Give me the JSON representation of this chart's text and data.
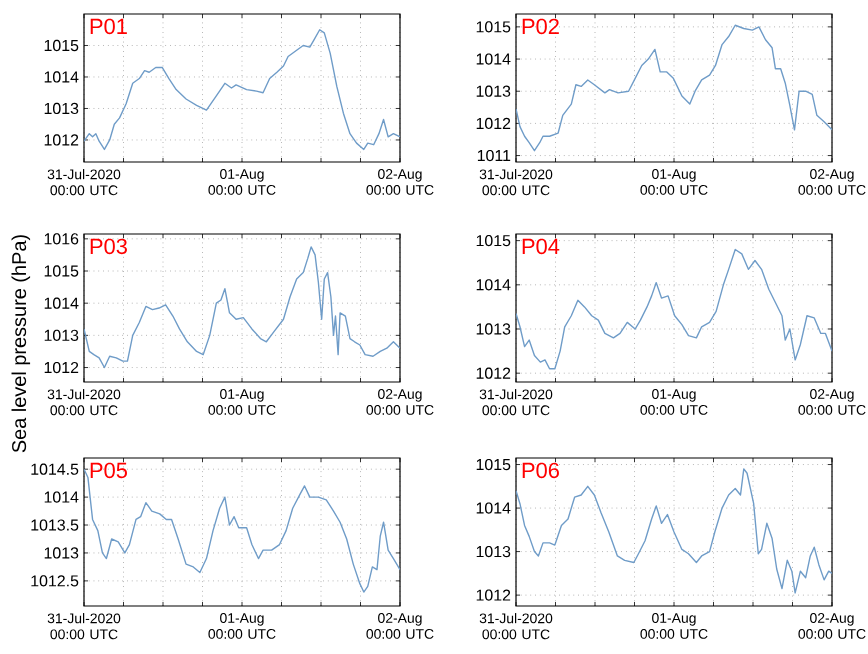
{
  "chart_data": [
    {
      "type": "line",
      "title": "P01",
      "xlim": [
        "2020-07-31T00:00",
        "2020-08-02T00:00"
      ],
      "ylim": [
        1011.3,
        1016
      ],
      "yticks": [
        1012,
        1013,
        1014,
        1015
      ],
      "grid": true,
      "xticks": [
        {
          "value": "2020-07-31T00:00",
          "label": "31-Jul-2020 00:00 UTC"
        },
        {
          "value": "2020-07-31T06:00",
          "label": null
        },
        {
          "value": "2020-07-31T12:00",
          "label": null
        },
        {
          "value": "2020-07-31T18:00",
          "label": null
        },
        {
          "value": "2020-08-01T00:00",
          "label": "01-Aug 00:00 UTC"
        },
        {
          "value": "2020-08-01T06:00",
          "label": null
        },
        {
          "value": "2020-08-01T12:00",
          "label": null
        },
        {
          "value": "2020-08-01T18:00",
          "label": null
        },
        {
          "value": "2020-08-02T00:00",
          "label": "02-Aug 00:00 UTC"
        }
      ],
      "x": [
        "2020-07-31T00:00",
        "2020-07-31T00:48",
        "2020-07-31T01:18",
        "2020-07-31T01:48",
        "2020-07-31T02:18",
        "2020-07-31T03:06",
        "2020-07-31T03:54",
        "2020-07-31T04:36",
        "2020-07-31T05:24",
        "2020-07-31T06:24",
        "2020-07-31T07:24",
        "2020-07-31T08:24",
        "2020-07-31T09:12",
        "2020-07-31T09:54",
        "2020-07-31T10:54",
        "2020-07-31T11:54",
        "2020-07-31T12:54",
        "2020-07-31T14:00",
        "2020-07-31T15:30",
        "2020-07-31T17:06",
        "2020-07-31T18:36",
        "2020-07-31T20:06",
        "2020-07-31T21:24",
        "2020-07-31T22:24",
        "2020-07-31T23:06",
        "2020-08-01T00:42",
        "2020-08-01T02:12",
        "2020-08-01T03:12",
        "2020-08-01T04:12",
        "2020-08-01T05:18",
        "2020-08-01T06:18",
        "2020-08-01T07:00",
        "2020-08-01T08:18",
        "2020-08-01T09:18",
        "2020-08-01T10:18",
        "2020-08-01T11:00",
        "2020-08-01T11:48",
        "2020-08-01T12:30",
        "2020-08-01T13:24",
        "2020-08-01T14:24",
        "2020-08-01T15:24",
        "2020-08-01T16:24",
        "2020-08-01T17:24",
        "2020-08-01T18:30",
        "2020-08-01T19:06",
        "2020-08-01T20:00",
        "2020-08-01T20:48",
        "2020-08-01T21:30",
        "2020-08-01T22:12",
        "2020-08-01T23:00",
        "2020-08-02T00:00"
      ],
      "series": [
        {
          "color": "#6f9cc8",
          "values": [
            1011.96,
            1012.2,
            1012.1,
            1012.2,
            1011.96,
            1011.7,
            1012.0,
            1012.5,
            1012.7,
            1013.15,
            1013.8,
            1013.95,
            1014.2,
            1014.15,
            1014.3,
            1014.3,
            1013.95,
            1013.6,
            1013.3,
            1013.1,
            1012.95,
            1013.4,
            1013.8,
            1013.65,
            1013.75,
            1013.6,
            1013.55,
            1013.5,
            1013.95,
            1014.15,
            1014.35,
            1014.65,
            1014.85,
            1015.0,
            1014.95,
            1015.2,
            1015.5,
            1015.4,
            1014.75,
            1013.7,
            1012.85,
            1012.2,
            1011.9,
            1011.7,
            1011.9,
            1011.85,
            1012.2,
            1012.65,
            1012.1,
            1012.2,
            1012.1
          ]
        }
      ]
    },
    {
      "type": "line",
      "title": "P02",
      "xlim": [
        "2020-07-31T00:00",
        "2020-08-02T00:00"
      ],
      "ylim": [
        1010.8,
        1015.4
      ],
      "yticks": [
        1011,
        1012,
        1013,
        1014,
        1015
      ],
      "grid": true,
      "xticks": [
        {
          "value": "2020-07-31T00:00",
          "label": "31-Jul-2020 00:00 UTC"
        },
        {
          "value": "2020-07-31T06:00",
          "label": null
        },
        {
          "value": "2020-07-31T12:00",
          "label": null
        },
        {
          "value": "2020-07-31T18:00",
          "label": null
        },
        {
          "value": "2020-08-01T00:00",
          "label": "01-Aug 00:00 UTC"
        },
        {
          "value": "2020-08-01T06:00",
          "label": null
        },
        {
          "value": "2020-08-01T12:00",
          "label": null
        },
        {
          "value": "2020-08-01T18:00",
          "label": null
        },
        {
          "value": "2020-08-02T00:00",
          "label": "02-Aug 00:00 UTC"
        }
      ],
      "x": [
        "2020-07-31T00:00",
        "2020-07-31T00:36",
        "2020-07-31T01:18",
        "2020-07-31T02:00",
        "2020-07-31T02:48",
        "2020-07-31T03:36",
        "2020-07-31T04:06",
        "2020-07-31T05:06",
        "2020-07-31T06:24",
        "2020-07-31T07:06",
        "2020-07-31T08:24",
        "2020-07-31T09:06",
        "2020-07-31T09:54",
        "2020-07-31T10:54",
        "2020-07-31T11:54",
        "2020-07-31T13:30",
        "2020-07-31T14:12",
        "2020-07-31T15:30",
        "2020-07-31T17:06",
        "2020-07-31T18:06",
        "2020-07-31T19:06",
        "2020-07-31T20:06",
        "2020-07-31T21:06",
        "2020-07-31T21:54",
        "2020-07-31T22:54",
        "2020-07-31T23:54",
        "2020-08-01T01:12",
        "2020-08-01T02:24",
        "2020-08-01T03:12",
        "2020-08-01T04:12",
        "2020-08-01T05:24",
        "2020-08-01T06:18",
        "2020-08-01T07:18",
        "2020-08-01T08:18",
        "2020-08-01T09:18",
        "2020-08-01T10:36",
        "2020-08-01T11:54",
        "2020-08-01T12:54",
        "2020-08-01T13:54",
        "2020-08-01T14:54",
        "2020-08-01T15:24",
        "2020-08-01T16:12",
        "2020-08-01T16:54",
        "2020-08-01T17:36",
        "2020-08-01T18:18",
        "2020-08-01T19:00",
        "2020-08-01T20:00",
        "2020-08-01T21:00",
        "2020-08-01T21:42",
        "2020-08-01T22:48",
        "2020-08-02T00:00"
      ],
      "series": [
        {
          "color": "#6f9cc8",
          "values": [
            1012.45,
            1011.9,
            1011.6,
            1011.4,
            1011.15,
            1011.4,
            1011.6,
            1011.6,
            1011.7,
            1012.25,
            1012.6,
            1013.2,
            1013.15,
            1013.35,
            1013.2,
            1012.95,
            1013.05,
            1012.95,
            1013.0,
            1013.4,
            1013.8,
            1014.0,
            1014.3,
            1013.6,
            1013.6,
            1013.4,
            1012.85,
            1012.6,
            1013.0,
            1013.35,
            1013.5,
            1013.8,
            1014.45,
            1014.7,
            1015.05,
            1014.95,
            1014.9,
            1015.0,
            1014.6,
            1014.35,
            1013.7,
            1013.7,
            1013.25,
            1012.55,
            1011.8,
            1013.0,
            1013.0,
            1012.9,
            1012.25,
            1012.05,
            1011.8
          ]
        }
      ]
    },
    {
      "type": "line",
      "title": "P03",
      "ylabel": "Sea level pressure (hPa)",
      "xlim": [
        "2020-07-31T00:00",
        "2020-08-02T00:00"
      ],
      "ylim": [
        1011.55,
        1016.15
      ],
      "yticks": [
        1012,
        1013,
        1014,
        1015,
        1016
      ],
      "grid": true,
      "xticks": [
        {
          "value": "2020-07-31T00:00",
          "label": "31-Jul-2020 00:00 UTC"
        },
        {
          "value": "2020-07-31T06:00",
          "label": null
        },
        {
          "value": "2020-07-31T12:00",
          "label": null
        },
        {
          "value": "2020-07-31T18:00",
          "label": null
        },
        {
          "value": "2020-08-01T00:00",
          "label": "01-Aug 00:00 UTC"
        },
        {
          "value": "2020-08-01T06:00",
          "label": null
        },
        {
          "value": "2020-08-01T12:00",
          "label": null
        },
        {
          "value": "2020-08-01T18:00",
          "label": null
        },
        {
          "value": "2020-08-02T00:00",
          "label": "02-Aug 00:00 UTC"
        }
      ],
      "x": [
        "2020-07-31T00:00",
        "2020-07-31T00:48",
        "2020-07-31T01:30",
        "2020-07-31T02:18",
        "2020-07-31T03:06",
        "2020-07-31T03:54",
        "2020-07-31T04:54",
        "2020-07-31T05:54",
        "2020-07-31T06:36",
        "2020-07-31T07:24",
        "2020-07-31T08:24",
        "2020-07-31T09:24",
        "2020-07-31T10:24",
        "2020-07-31T11:24",
        "2020-07-31T12:24",
        "2020-07-31T13:30",
        "2020-07-31T14:30",
        "2020-07-31T15:42",
        "2020-07-31T17:06",
        "2020-07-31T18:06",
        "2020-07-31T19:06",
        "2020-07-31T20:06",
        "2020-07-31T20:48",
        "2020-07-31T21:24",
        "2020-07-31T22:06",
        "2020-07-31T23:06",
        "2020-08-01T00:12",
        "2020-08-01T01:30",
        "2020-08-01T02:48",
        "2020-08-01T03:42",
        "2020-08-01T04:48",
        "2020-08-01T06:18",
        "2020-08-01T07:18",
        "2020-08-01T08:18",
        "2020-08-01T09:18",
        "2020-08-01T10:00",
        "2020-08-01T10:30",
        "2020-08-01T11:06",
        "2020-08-01T11:36",
        "2020-08-01T12:06",
        "2020-08-01T12:30",
        "2020-08-01T13:00",
        "2020-08-01T13:30",
        "2020-08-01T13:54",
        "2020-08-01T14:12",
        "2020-08-01T14:36",
        "2020-08-01T14:54",
        "2020-08-01T15:42",
        "2020-08-01T16:24",
        "2020-08-01T17:06",
        "2020-08-01T17:54",
        "2020-08-01T18:42",
        "2020-08-01T19:54",
        "2020-08-01T21:00",
        "2020-08-01T22:00",
        "2020-08-01T23:00",
        "2020-08-02T00:00"
      ],
      "series": [
        {
          "color": "#6f9cc8",
          "values": [
            1013.2,
            1012.5,
            1012.4,
            1012.3,
            1012.0,
            1012.35,
            1012.3,
            1012.2,
            1012.2,
            1013.0,
            1013.4,
            1013.9,
            1013.8,
            1013.85,
            1013.95,
            1013.6,
            1013.2,
            1012.8,
            1012.5,
            1012.4,
            1013.0,
            1014.0,
            1014.1,
            1014.45,
            1013.7,
            1013.5,
            1013.55,
            1013.2,
            1012.9,
            1012.8,
            1013.1,
            1013.5,
            1014.2,
            1014.75,
            1014.95,
            1015.4,
            1015.75,
            1015.5,
            1014.65,
            1013.5,
            1014.75,
            1014.95,
            1014.2,
            1013.0,
            1013.6,
            1012.4,
            1013.7,
            1013.6,
            1012.9,
            1012.8,
            1012.7,
            1012.4,
            1012.35,
            1012.5,
            1012.6,
            1012.8,
            1012.6
          ]
        }
      ]
    },
    {
      "type": "line",
      "title": "P04",
      "xlim": [
        "2020-07-31T00:00",
        "2020-08-02T00:00"
      ],
      "ylim": [
        1011.8,
        1015.15
      ],
      "yticks": [
        1012,
        1013,
        1014,
        1015
      ],
      "grid": true,
      "xticks": [
        {
          "value": "2020-07-31T00:00",
          "label": "31-Jul-2020 00:00 UTC"
        },
        {
          "value": "2020-07-31T06:00",
          "label": null
        },
        {
          "value": "2020-07-31T12:00",
          "label": null
        },
        {
          "value": "2020-07-31T18:00",
          "label": null
        },
        {
          "value": "2020-08-01T00:00",
          "label": "01-Aug 00:00 UTC"
        },
        {
          "value": "2020-08-01T06:00",
          "label": null
        },
        {
          "value": "2020-08-01T12:00",
          "label": null
        },
        {
          "value": "2020-08-01T18:00",
          "label": null
        },
        {
          "value": "2020-08-02T00:00",
          "label": "02-Aug 00:00 UTC"
        }
      ],
      "x": [
        "2020-07-31T00:00",
        "2020-07-31T00:36",
        "2020-07-31T01:18",
        "2020-07-31T02:00",
        "2020-07-31T02:48",
        "2020-07-31T03:42",
        "2020-07-31T04:24",
        "2020-07-31T05:06",
        "2020-07-31T05:54",
        "2020-07-31T06:42",
        "2020-07-31T07:24",
        "2020-07-31T08:24",
        "2020-07-31T09:24",
        "2020-07-31T10:24",
        "2020-07-31T11:30",
        "2020-07-31T12:30",
        "2020-07-31T13:30",
        "2020-07-31T14:48",
        "2020-07-31T15:48",
        "2020-07-31T16:54",
        "2020-07-31T18:06",
        "2020-07-31T18:54",
        "2020-07-31T19:54",
        "2020-07-31T20:36",
        "2020-07-31T21:18",
        "2020-07-31T22:06",
        "2020-07-31T23:06",
        "2020-08-01T00:06",
        "2020-08-01T01:12",
        "2020-08-01T02:12",
        "2020-08-01T03:24",
        "2020-08-01T04:12",
        "2020-08-01T05:24",
        "2020-08-01T06:24",
        "2020-08-01T07:30",
        "2020-08-01T08:18",
        "2020-08-01T09:18",
        "2020-08-01T10:18",
        "2020-08-01T11:18",
        "2020-08-01T12:18",
        "2020-08-01T13:18",
        "2020-08-01T14:24",
        "2020-08-01T15:24",
        "2020-08-01T16:24",
        "2020-08-01T16:54",
        "2020-08-01T17:36",
        "2020-08-01T18:24",
        "2020-08-01T19:12",
        "2020-08-01T20:12",
        "2020-08-01T21:18",
        "2020-08-01T22:18",
        "2020-08-01T23:00",
        "2020-08-02T00:00"
      ],
      "series": [
        {
          "color": "#6f9cc8",
          "values": [
            1013.35,
            1013.05,
            1012.6,
            1012.75,
            1012.4,
            1012.25,
            1012.3,
            1012.1,
            1012.1,
            1012.5,
            1013.05,
            1013.3,
            1013.65,
            1013.5,
            1013.3,
            1013.2,
            1012.9,
            1012.8,
            1012.9,
            1013.15,
            1013.0,
            1013.2,
            1013.5,
            1013.75,
            1014.05,
            1013.7,
            1013.75,
            1013.3,
            1013.1,
            1012.85,
            1012.8,
            1013.05,
            1013.15,
            1013.4,
            1014.0,
            1014.35,
            1014.8,
            1014.7,
            1014.35,
            1014.55,
            1014.35,
            1013.9,
            1013.6,
            1013.3,
            1012.75,
            1013.0,
            1012.3,
            1012.65,
            1013.3,
            1013.25,
            1012.9,
            1012.9,
            1012.5
          ]
        }
      ]
    },
    {
      "type": "line",
      "title": "P05",
      "xlim": [
        "2020-07-31T00:00",
        "2020-08-02T00:00"
      ],
      "ylim": [
        1012.05,
        1014.7
      ],
      "yticks": [
        1012.5,
        1013,
        1013.5,
        1014,
        1014.5
      ],
      "grid": true,
      "xticks": [
        {
          "value": "2020-07-31T00:00",
          "label": "31-Jul-2020 00:00 UTC"
        },
        {
          "value": "2020-07-31T06:00",
          "label": null
        },
        {
          "value": "2020-07-31T12:00",
          "label": null
        },
        {
          "value": "2020-07-31T18:00",
          "label": null
        },
        {
          "value": "2020-08-01T00:00",
          "label": "01-Aug 00:00 UTC"
        },
        {
          "value": "2020-08-01T06:00",
          "label": null
        },
        {
          "value": "2020-08-01T12:00",
          "label": null
        },
        {
          "value": "2020-08-01T18:00",
          "label": null
        },
        {
          "value": "2020-08-02T00:00",
          "label": "02-Aug 00:00 UTC"
        }
      ],
      "x": [
        "2020-07-31T00:00",
        "2020-07-31T00:36",
        "2020-07-31T01:18",
        "2020-07-31T02:06",
        "2020-07-31T02:48",
        "2020-07-31T03:24",
        "2020-07-31T04:12",
        "2020-07-31T05:12",
        "2020-07-31T06:12",
        "2020-07-31T06:54",
        "2020-07-31T07:54",
        "2020-07-31T08:36",
        "2020-07-31T09:24",
        "2020-07-31T10:18",
        "2020-07-31T11:30",
        "2020-07-31T12:30",
        "2020-07-31T13:18",
        "2020-07-31T14:18",
        "2020-07-31T15:30",
        "2020-07-31T16:36",
        "2020-07-31T17:36",
        "2020-07-31T18:36",
        "2020-07-31T19:36",
        "2020-07-31T20:36",
        "2020-07-31T21:24",
        "2020-07-31T22:06",
        "2020-07-31T22:48",
        "2020-07-31T23:30",
        "2020-08-01T00:42",
        "2020-08-01T01:30",
        "2020-08-01T02:30",
        "2020-08-01T03:12",
        "2020-08-01T04:30",
        "2020-08-01T05:42",
        "2020-08-01T06:42",
        "2020-08-01T07:42",
        "2020-08-01T08:48",
        "2020-08-01T09:30",
        "2020-08-01T10:18",
        "2020-08-01T11:36",
        "2020-08-01T12:48",
        "2020-08-01T13:54",
        "2020-08-01T14:54",
        "2020-08-01T15:54",
        "2020-08-01T16:54",
        "2020-08-01T17:54",
        "2020-08-01T18:30",
        "2020-08-01T19:06",
        "2020-08-01T19:48",
        "2020-08-01T20:30",
        "2020-08-01T21:00",
        "2020-08-01T21:30",
        "2020-08-01T22:12",
        "2020-08-01T23:00",
        "2020-08-02T00:00"
      ],
      "series": [
        {
          "color": "#6f9cc8",
          "values": [
            1014.5,
            1014.35,
            1013.6,
            1013.4,
            1013.0,
            1012.9,
            1013.25,
            1013.2,
            1013.0,
            1013.15,
            1013.6,
            1013.65,
            1013.9,
            1013.75,
            1013.7,
            1013.6,
            1013.6,
            1013.25,
            1012.8,
            1012.75,
            1012.65,
            1012.9,
            1013.4,
            1013.8,
            1014.0,
            1013.5,
            1013.65,
            1013.45,
            1013.45,
            1013.15,
            1012.9,
            1013.05,
            1013.05,
            1013.15,
            1013.4,
            1013.8,
            1014.05,
            1014.2,
            1014.0,
            1014.0,
            1013.95,
            1013.75,
            1013.55,
            1013.25,
            1012.8,
            1012.45,
            1012.3,
            1012.4,
            1012.75,
            1012.7,
            1013.3,
            1013.55,
            1013.05,
            1012.9,
            1012.7
          ]
        }
      ]
    },
    {
      "type": "line",
      "title": "P06",
      "xlim": [
        "2020-07-31T00:00",
        "2020-08-02T00:00"
      ],
      "ylim": [
        1011.75,
        1015.15
      ],
      "yticks": [
        1012,
        1013,
        1014,
        1015
      ],
      "grid": true,
      "xticks": [
        {
          "value": "2020-07-31T00:00",
          "label": "31-Jul-2020 00:00 UTC"
        },
        {
          "value": "2020-07-31T06:00",
          "label": null
        },
        {
          "value": "2020-07-31T12:00",
          "label": null
        },
        {
          "value": "2020-07-31T18:00",
          "label": null
        },
        {
          "value": "2020-08-01T00:00",
          "label": "01-Aug 00:00 UTC"
        },
        {
          "value": "2020-08-01T06:00",
          "label": null
        },
        {
          "value": "2020-08-01T12:00",
          "label": null
        },
        {
          "value": "2020-08-01T18:00",
          "label": null
        },
        {
          "value": "2020-08-02T00:00",
          "label": "02-Aug 00:00 UTC"
        }
      ],
      "x": [
        "2020-07-31T00:00",
        "2020-07-31T00:36",
        "2020-07-31T01:18",
        "2020-07-31T02:00",
        "2020-07-31T02:48",
        "2020-07-31T03:24",
        "2020-07-31T04:06",
        "2020-07-31T05:06",
        "2020-07-31T05:54",
        "2020-07-31T06:54",
        "2020-07-31T07:54",
        "2020-07-31T08:54",
        "2020-07-31T09:54",
        "2020-07-31T10:54",
        "2020-07-31T11:54",
        "2020-07-31T12:54",
        "2020-07-31T14:06",
        "2020-07-31T15:24",
        "2020-07-31T16:30",
        "2020-07-31T17:54",
        "2020-07-31T18:36",
        "2020-07-31T19:36",
        "2020-07-31T20:36",
        "2020-07-31T21:18",
        "2020-07-31T22:06",
        "2020-07-31T23:00",
        "2020-08-01T00:00",
        "2020-08-01T01:12",
        "2020-08-01T02:12",
        "2020-08-01T03:24",
        "2020-08-01T04:12",
        "2020-08-01T05:24",
        "2020-08-01T06:12",
        "2020-08-01T07:18",
        "2020-08-01T08:18",
        "2020-08-01T09:18",
        "2020-08-01T10:06",
        "2020-08-01T10:36",
        "2020-08-01T11:06",
        "2020-08-01T12:06",
        "2020-08-01T12:48",
        "2020-08-01T13:18",
        "2020-08-01T14:06",
        "2020-08-01T14:54",
        "2020-08-01T15:36",
        "2020-08-01T16:24",
        "2020-08-01T17:12",
        "2020-08-01T17:54",
        "2020-08-01T18:24",
        "2020-08-01T19:12",
        "2020-08-01T20:00",
        "2020-08-01T20:42",
        "2020-08-01T21:18",
        "2020-08-01T22:00",
        "2020-08-01T22:48",
        "2020-08-01T23:30",
        "2020-08-02T00:00"
      ],
      "series": [
        {
          "color": "#6f9cc8",
          "values": [
            1014.4,
            1014.1,
            1013.6,
            1013.35,
            1013.0,
            1012.9,
            1013.2,
            1013.2,
            1013.15,
            1013.6,
            1013.75,
            1014.25,
            1014.3,
            1014.5,
            1014.3,
            1013.9,
            1013.45,
            1012.9,
            1012.8,
            1012.75,
            1012.95,
            1013.25,
            1013.75,
            1014.05,
            1013.65,
            1013.85,
            1013.45,
            1013.05,
            1012.95,
            1012.75,
            1012.9,
            1013.0,
            1013.45,
            1014.0,
            1014.3,
            1014.45,
            1014.3,
            1014.9,
            1014.8,
            1014.1,
            1012.95,
            1013.05,
            1013.65,
            1013.3,
            1012.6,
            1012.15,
            1012.8,
            1012.55,
            1012.05,
            1012.55,
            1012.4,
            1012.9,
            1013.1,
            1012.7,
            1012.35,
            1012.55,
            1012.5
          ]
        }
      ]
    }
  ]
}
